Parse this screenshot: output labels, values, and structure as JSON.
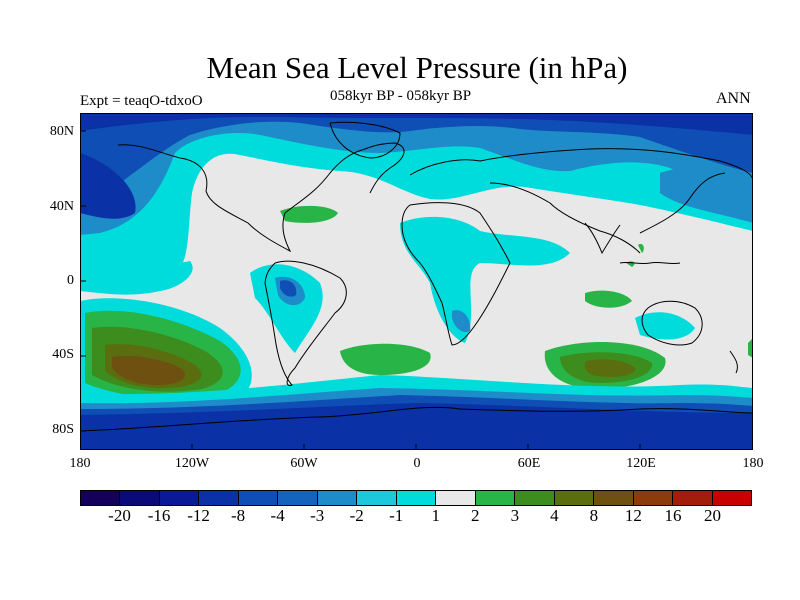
{
  "header": {
    "title": "Mean Sea Level Pressure (in hPa)",
    "subtitle": "058kyr BP - 058kyr BP",
    "experiment": "Expt = teaqO-tdxoO",
    "season": "ANN"
  },
  "axes": {
    "lat_labels": [
      "80N",
      "40N",
      "0",
      "40S",
      "80S"
    ],
    "lon_labels": [
      "180",
      "120W",
      "60W",
      "0",
      "60E",
      "120E",
      "180"
    ]
  },
  "colorbar": {
    "labels": [
      "-20",
      "-16",
      "-12",
      "-8",
      "-4",
      "-3",
      "-2",
      "-1",
      "1",
      "2",
      "3",
      "4",
      "8",
      "12",
      "16",
      "20"
    ],
    "colors": [
      "#14005a",
      "#0a0a78",
      "#0a1a96",
      "#0a32a6",
      "#0f4eb4",
      "#1464be",
      "#1e8cc8",
      "#1ec8dc",
      "#00dcdc",
      "#e8e8e8",
      "#28b446",
      "#3c8c1e",
      "#5a6e10",
      "#6e5010",
      "#8c3c0a",
      "#a01e0a",
      "#c80000"
    ]
  },
  "colors": {
    "background": "#ffffff",
    "neutral": "#e8e8e8",
    "coastline": "#000000"
  }
}
